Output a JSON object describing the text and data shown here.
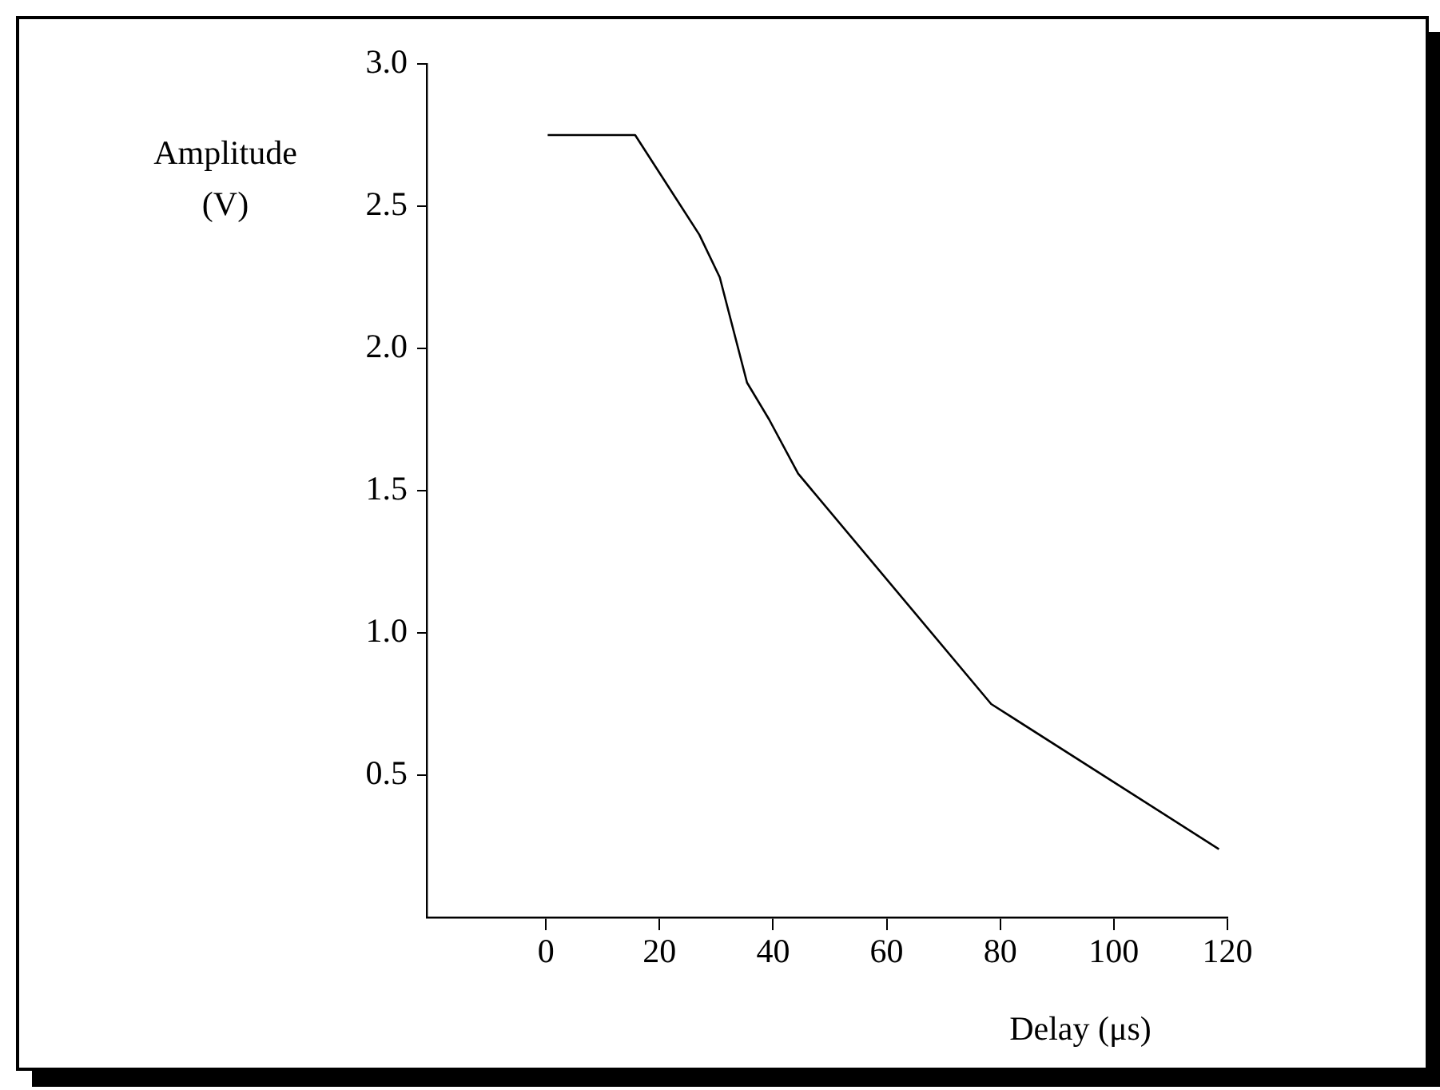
{
  "chart_data": {
    "type": "line",
    "xlabel": "Delay (μs)",
    "ylabel": "Amplitude (V)",
    "x": [
      0.3,
      15.7,
      27,
      30.6,
      35.4,
      39.3,
      44.4,
      78.4,
      118.5
    ],
    "series": [
      {
        "color": "#000000",
        "values": [
          2.75,
          2.75,
          2.4,
          2.25,
          1.88,
          1.75,
          1.56,
          0.75,
          0.24
        ]
      }
    ],
    "xlim": [
      -21,
      120
    ],
    "xticks": [
      0,
      20,
      40,
      60,
      80,
      100,
      120
    ],
    "ylim": [
      0,
      3
    ],
    "yticks": [
      0.5,
      {
        "value": 1,
        "label": "1.0"
      },
      1.5,
      {
        "value": 2,
        "label": "2.0"
      },
      2.5,
      {
        "value": 3,
        "label": "3.0"
      }
    ],
    "grid": false,
    "legend": false,
    "marker": "none",
    "line_style": "solid"
  }
}
